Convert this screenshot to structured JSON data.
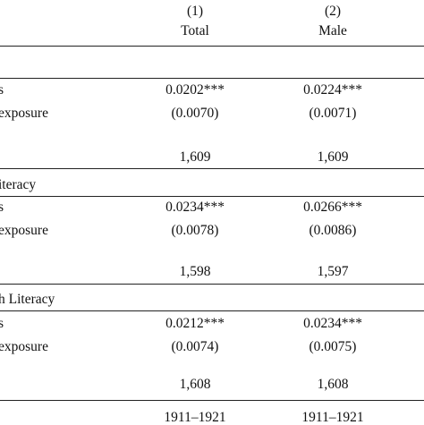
{
  "columns": [
    {
      "number": "(1)",
      "name": "Total"
    },
    {
      "number": "(2)",
      "name": "Male"
    }
  ],
  "panels": [
    {
      "header": "",
      "row_label_1": "s",
      "row_label_2": "exposure",
      "coef": [
        "0.0202***",
        "0.0224***"
      ],
      "se": [
        "(0.0070)",
        "(0.0071)"
      ],
      "n": [
        "1,609",
        "1,609"
      ]
    },
    {
      "header": "iteracy",
      "row_label_1": "s",
      "row_label_2": "exposure",
      "coef": [
        "0.0234***",
        "0.0266***"
      ],
      "se": [
        "(0.0078)",
        "(0.0086)"
      ],
      "n": [
        "1,598",
        "1,597"
      ]
    },
    {
      "header": "h Literacy",
      "row_label_1": "s",
      "row_label_2": "exposure",
      "coef": [
        "0.0212***",
        "0.0234***"
      ],
      "se": [
        "(0.0074)",
        "(0.0075)"
      ],
      "n": [
        "1,608",
        "1,608"
      ]
    }
  ],
  "footer": {
    "period": [
      "1911–1921",
      "1911–1921"
    ]
  }
}
